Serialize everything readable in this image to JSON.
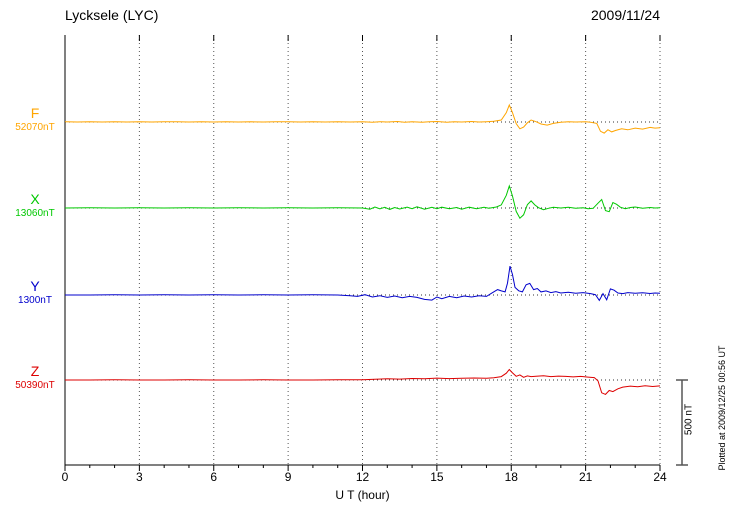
{
  "header": {
    "title": "Lycksele (LYC)",
    "date": "2009/11/24"
  },
  "axis": {
    "xlabel": "U T (hour)",
    "x_ticks": [
      0,
      3,
      6,
      9,
      12,
      15,
      18,
      21,
      24
    ],
    "x_range": [
      0,
      24
    ],
    "x_minor_step": 1
  },
  "scale_bar": {
    "label": "500 nT",
    "nT": 500
  },
  "footer": {
    "plotted_at": "Plotted at 2009/12/25 00:56 UT"
  },
  "chart_data": {
    "type": "line",
    "title": "Lycksele (LYC) magnetogram",
    "date": "2009/11/24",
    "xlabel": "U T (hour)",
    "x_range": [
      0,
      24
    ],
    "x_ticks": [
      0,
      3,
      6,
      9,
      12,
      15,
      18,
      21,
      24
    ],
    "grid": "dotted-vertical-at-3h",
    "legend_position": "left-margin",
    "scale_bar_nT": 500,
    "points_unit": "nT offset from channel baseline",
    "series": [
      {
        "name": "F",
        "baseline_label": "52070nT",
        "baseline_nT": 52070,
        "color": "#ffa500",
        "points": [
          [
            0,
            1
          ],
          [
            0.5,
            0
          ],
          [
            1,
            1
          ],
          [
            1.5,
            0
          ],
          [
            2,
            1
          ],
          [
            2.5,
            0
          ],
          [
            3,
            1
          ],
          [
            3.5,
            0
          ],
          [
            4,
            1
          ],
          [
            4.5,
            1
          ],
          [
            5,
            0
          ],
          [
            5.5,
            1
          ],
          [
            6,
            0
          ],
          [
            6.5,
            1
          ],
          [
            7,
            0
          ],
          [
            7.5,
            1
          ],
          [
            8,
            0
          ],
          [
            8.5,
            1
          ],
          [
            9,
            1
          ],
          [
            9.5,
            0
          ],
          [
            10,
            1
          ],
          [
            10.5,
            0
          ],
          [
            11,
            1
          ],
          [
            11.5,
            0
          ],
          [
            12,
            1
          ],
          [
            12.4,
            -2
          ],
          [
            12.7,
            2
          ],
          [
            13,
            0
          ],
          [
            13.4,
            3
          ],
          [
            13.7,
            -2
          ],
          [
            14,
            2
          ],
          [
            14.4,
            -2
          ],
          [
            14.7,
            1
          ],
          [
            15,
            3
          ],
          [
            15.4,
            -2
          ],
          [
            15.7,
            2
          ],
          [
            16,
            0
          ],
          [
            16.4,
            3
          ],
          [
            16.7,
            0
          ],
          [
            17,
            2
          ],
          [
            17.3,
            4
          ],
          [
            17.6,
            12
          ],
          [
            17.8,
            55
          ],
          [
            17.92,
            100
          ],
          [
            18.05,
            55
          ],
          [
            18.2,
            -10
          ],
          [
            18.35,
            -40
          ],
          [
            18.5,
            -30
          ],
          [
            18.65,
            -5
          ],
          [
            18.8,
            12
          ],
          [
            19,
            2
          ],
          [
            19.2,
            -12
          ],
          [
            19.45,
            -18
          ],
          [
            19.7,
            -8
          ],
          [
            20,
            -2
          ],
          [
            20.3,
            2
          ],
          [
            20.6,
            0
          ],
          [
            21,
            2
          ],
          [
            21.2,
            -2
          ],
          [
            21.45,
            -8
          ],
          [
            21.6,
            -55
          ],
          [
            21.75,
            -65
          ],
          [
            21.9,
            -45
          ],
          [
            22.05,
            -58
          ],
          [
            22.2,
            -50
          ],
          [
            22.45,
            -40
          ],
          [
            22.7,
            -46
          ],
          [
            23,
            -36
          ],
          [
            23.3,
            -42
          ],
          [
            23.6,
            -32
          ],
          [
            23.8,
            -36
          ],
          [
            24,
            -34
          ]
        ]
      },
      {
        "name": "X",
        "baseline_label": "13060nT",
        "baseline_nT": 13060,
        "color": "#00c800",
        "points": [
          [
            0,
            0
          ],
          [
            1,
            1
          ],
          [
            2,
            0
          ],
          [
            3,
            1
          ],
          [
            4,
            0
          ],
          [
            5,
            1
          ],
          [
            6,
            0
          ],
          [
            7,
            1
          ],
          [
            8,
            0
          ],
          [
            9,
            1
          ],
          [
            10,
            0
          ],
          [
            11,
            1
          ],
          [
            12,
            0
          ],
          [
            12.3,
            -7
          ],
          [
            12.5,
            6
          ],
          [
            12.7,
            -5
          ],
          [
            12.9,
            4
          ],
          [
            13.1,
            -8
          ],
          [
            13.3,
            3
          ],
          [
            13.5,
            -6
          ],
          [
            13.8,
            5
          ],
          [
            14,
            -4
          ],
          [
            14.2,
            7
          ],
          [
            14.5,
            -7
          ],
          [
            14.8,
            4
          ],
          [
            15,
            -4
          ],
          [
            15.2,
            5
          ],
          [
            15.5,
            -5
          ],
          [
            15.8,
            3
          ],
          [
            16,
            -7
          ],
          [
            16.3,
            5
          ],
          [
            16.6,
            -4
          ],
          [
            16.9,
            4
          ],
          [
            17.1,
            -2
          ],
          [
            17.4,
            6
          ],
          [
            17.6,
            18
          ],
          [
            17.8,
            75
          ],
          [
            17.92,
            130
          ],
          [
            18.05,
            70
          ],
          [
            18.2,
            -20
          ],
          [
            18.35,
            -60
          ],
          [
            18.5,
            -40
          ],
          [
            18.65,
            20
          ],
          [
            18.8,
            42
          ],
          [
            18.95,
            18
          ],
          [
            19.1,
            2
          ],
          [
            19.3,
            -10
          ],
          [
            19.5,
            -2
          ],
          [
            19.7,
            4
          ],
          [
            20,
            0
          ],
          [
            20.3,
            4
          ],
          [
            20.6,
            -2
          ],
          [
            20.9,
            2
          ],
          [
            21.1,
            -4
          ],
          [
            21.3,
            -2
          ],
          [
            21.5,
            28
          ],
          [
            21.65,
            50
          ],
          [
            21.8,
            -15
          ],
          [
            21.95,
            -22
          ],
          [
            22.1,
            32
          ],
          [
            22.25,
            22
          ],
          [
            22.4,
            5
          ],
          [
            22.6,
            -4
          ],
          [
            22.8,
            3
          ],
          [
            23,
            6
          ],
          [
            23.3,
            -2
          ],
          [
            23.6,
            3
          ],
          [
            23.8,
            0
          ],
          [
            24,
            2
          ]
        ]
      },
      {
        "name": "Y",
        "baseline_label": "1300nT",
        "baseline_nT": 1300,
        "color": "#0000cc",
        "points": [
          [
            0,
            0
          ],
          [
            1,
            0
          ],
          [
            2,
            1
          ],
          [
            3,
            0
          ],
          [
            4,
            1
          ],
          [
            5,
            0
          ],
          [
            6,
            1
          ],
          [
            7,
            0
          ],
          [
            8,
            1
          ],
          [
            9,
            0
          ],
          [
            10,
            1
          ],
          [
            11,
            0
          ],
          [
            11.5,
            -4
          ],
          [
            11.8,
            -8
          ],
          [
            12.1,
            2
          ],
          [
            12.4,
            -12
          ],
          [
            12.7,
            -4
          ],
          [
            13,
            -14
          ],
          [
            13.3,
            -6
          ],
          [
            13.6,
            -16
          ],
          [
            13.9,
            -8
          ],
          [
            14.2,
            -14
          ],
          [
            14.5,
            -26
          ],
          [
            14.8,
            -30
          ],
          [
            15,
            -12
          ],
          [
            15.2,
            -22
          ],
          [
            15.5,
            -8
          ],
          [
            15.8,
            -16
          ],
          [
            16.1,
            -6
          ],
          [
            16.4,
            -12
          ],
          [
            16.7,
            -4
          ],
          [
            17,
            -8
          ],
          [
            17.2,
            10
          ],
          [
            17.45,
            32
          ],
          [
            17.6,
            24
          ],
          [
            17.75,
            18
          ],
          [
            17.85,
            70
          ],
          [
            17.95,
            170
          ],
          [
            18.05,
            120
          ],
          [
            18.15,
            45
          ],
          [
            18.3,
            25
          ],
          [
            18.45,
            18
          ],
          [
            18.6,
            60
          ],
          [
            18.75,
            68
          ],
          [
            18.9,
            32
          ],
          [
            19.05,
            38
          ],
          [
            19.2,
            18
          ],
          [
            19.4,
            24
          ],
          [
            19.6,
            14
          ],
          [
            19.8,
            20
          ],
          [
            20,
            12
          ],
          [
            20.3,
            16
          ],
          [
            20.6,
            10
          ],
          [
            20.9,
            14
          ],
          [
            21.2,
            8
          ],
          [
            21.4,
            2
          ],
          [
            21.55,
            -32
          ],
          [
            21.7,
            8
          ],
          [
            21.85,
            -28
          ],
          [
            22,
            36
          ],
          [
            22.15,
            28
          ],
          [
            22.3,
            12
          ],
          [
            22.5,
            8
          ],
          [
            22.7,
            14
          ],
          [
            23,
            10
          ],
          [
            23.3,
            13
          ],
          [
            23.6,
            9
          ],
          [
            23.8,
            12
          ],
          [
            24,
            10
          ]
        ]
      },
      {
        "name": "Z",
        "baseline_label": "50390nT",
        "baseline_nT": 50390,
        "color": "#dd0000",
        "points": [
          [
            0,
            0
          ],
          [
            1,
            0
          ],
          [
            2,
            1
          ],
          [
            3,
            0
          ],
          [
            4,
            0
          ],
          [
            5,
            1
          ],
          [
            6,
            0
          ],
          [
            7,
            0
          ],
          [
            8,
            1
          ],
          [
            9,
            0
          ],
          [
            10,
            0
          ],
          [
            11,
            1
          ],
          [
            12,
            2
          ],
          [
            12.5,
            4
          ],
          [
            13,
            7
          ],
          [
            13.5,
            5
          ],
          [
            14,
            9
          ],
          [
            14.5,
            7
          ],
          [
            15,
            11
          ],
          [
            15.5,
            8
          ],
          [
            16,
            10
          ],
          [
            16.5,
            12
          ],
          [
            17,
            10
          ],
          [
            17.3,
            13
          ],
          [
            17.6,
            20
          ],
          [
            17.8,
            40
          ],
          [
            17.92,
            62
          ],
          [
            18.05,
            42
          ],
          [
            18.2,
            22
          ],
          [
            18.35,
            30
          ],
          [
            18.5,
            16
          ],
          [
            18.65,
            24
          ],
          [
            18.8,
            20
          ],
          [
            19,
            22
          ],
          [
            19.3,
            25
          ],
          [
            19.6,
            20
          ],
          [
            19.9,
            23
          ],
          [
            20.2,
            21
          ],
          [
            20.5,
            18
          ],
          [
            20.8,
            21
          ],
          [
            21.1,
            17
          ],
          [
            21.35,
            14
          ],
          [
            21.5,
            -5
          ],
          [
            21.65,
            -75
          ],
          [
            21.8,
            -85
          ],
          [
            21.95,
            -62
          ],
          [
            22.1,
            -68
          ],
          [
            22.3,
            -52
          ],
          [
            22.5,
            -42
          ],
          [
            22.8,
            -36
          ],
          [
            23.1,
            -40
          ],
          [
            23.4,
            -34
          ],
          [
            23.7,
            -38
          ],
          [
            24,
            -35
          ]
        ]
      }
    ]
  }
}
